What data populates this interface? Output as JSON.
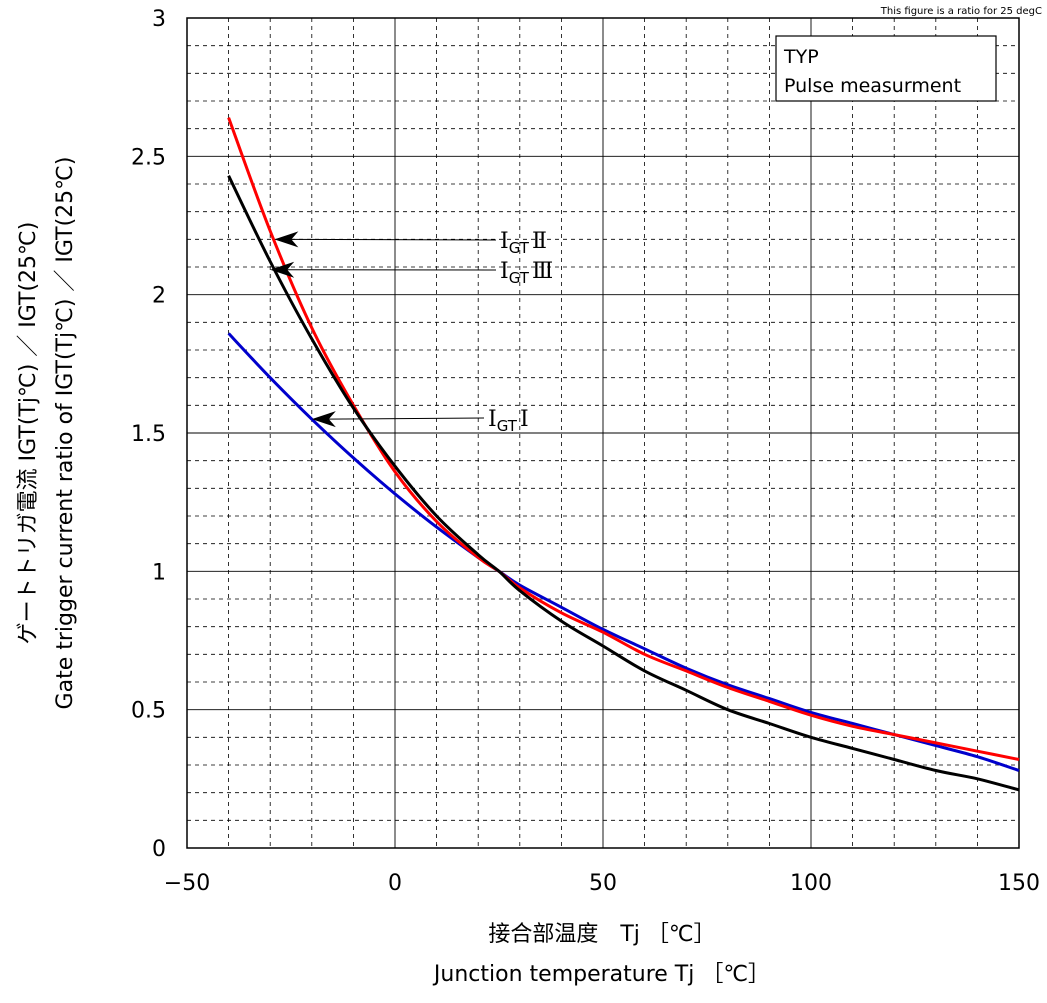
{
  "chart_data": {
    "type": "line",
    "note": "This figure is a ratio for 25 degC",
    "legend_box": [
      "TYP",
      "Pulse measurment"
    ],
    "xlabel": [
      "接合部温度　Tj ［℃］",
      "Junction  temperature    Tj ［℃］"
    ],
    "ylabel": [
      "ゲートトリガ電流 IGT(Tj℃) ／ IGT(25℃)",
      "Gate trigger current ratio of IGT(Tj℃) ／ IGT(25℃)"
    ],
    "xlim": [
      -50,
      150
    ],
    "ylim": [
      0,
      3
    ],
    "x_ticks": [
      -50,
      0,
      50,
      100,
      150
    ],
    "x_tick_labels": [
      "−50",
      "0",
      "50",
      "100",
      "150"
    ],
    "y_ticks": [
      0,
      0.5,
      1,
      1.5,
      2,
      2.5,
      3
    ],
    "y_tick_labels": [
      "0",
      "0.5",
      "1",
      "1.5",
      "2",
      "2.5",
      "3"
    ],
    "grid": true,
    "series": [
      {
        "name": "IGT Ⅰ",
        "color": "#0000cc",
        "x": [
          -40,
          -30,
          -20,
          -10,
          0,
          10,
          20,
          25,
          30,
          40,
          50,
          60,
          70,
          80,
          90,
          100,
          110,
          120,
          130,
          140,
          150
        ],
        "y": [
          1.86,
          1.7,
          1.55,
          1.41,
          1.28,
          1.16,
          1.05,
          1.0,
          0.95,
          0.87,
          0.79,
          0.72,
          0.65,
          0.59,
          0.54,
          0.49,
          0.45,
          0.41,
          0.37,
          0.33,
          0.28
        ]
      },
      {
        "name": "IGT Ⅱ",
        "color": "#ff0000",
        "x": [
          -40,
          -30,
          -20,
          -10,
          0,
          10,
          20,
          25,
          30,
          40,
          50,
          60,
          70,
          80,
          90,
          100,
          110,
          120,
          130,
          140,
          150
        ],
        "y": [
          2.64,
          2.23,
          1.88,
          1.6,
          1.36,
          1.18,
          1.05,
          1.0,
          0.94,
          0.85,
          0.78,
          0.7,
          0.64,
          0.58,
          0.53,
          0.48,
          0.44,
          0.41,
          0.38,
          0.35,
          0.32
        ]
      },
      {
        "name": "IGT Ⅲ",
        "color": "#000000",
        "x": [
          -40,
          -30,
          -20,
          -10,
          0,
          10,
          20,
          25,
          30,
          40,
          50,
          60,
          70,
          80,
          90,
          100,
          110,
          120,
          130,
          140,
          150
        ],
        "y": [
          2.43,
          2.12,
          1.84,
          1.59,
          1.38,
          1.2,
          1.06,
          1.0,
          0.93,
          0.82,
          0.73,
          0.64,
          0.57,
          0.5,
          0.45,
          0.4,
          0.36,
          0.32,
          0.28,
          0.25,
          0.21
        ]
      }
    ],
    "annotations": [
      {
        "label_main": "I",
        "label_sub": "GT",
        "label_roman": "Ⅱ",
        "series": "IGT Ⅱ",
        "arrow_to_x": -29,
        "arrow_to_y": 2.2
      },
      {
        "label_main": "I",
        "label_sub": "GT",
        "label_roman": "Ⅲ",
        "series": "IGT Ⅲ",
        "arrow_to_x": -30,
        "arrow_to_y": 2.09
      },
      {
        "label_main": "I",
        "label_sub": "GT",
        "label_roman": "Ⅰ",
        "series": "IGT Ⅰ",
        "arrow_to_x": -20,
        "arrow_to_y": 1.55
      }
    ]
  }
}
